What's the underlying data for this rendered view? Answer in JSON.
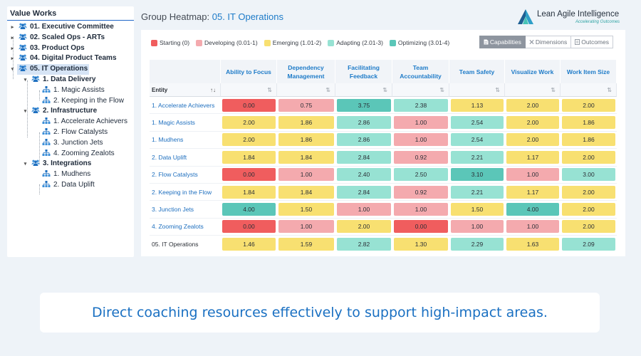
{
  "sidebar": {
    "title": "Value Works",
    "nodes": [
      {
        "label": "01. Executive Committee",
        "level": 0,
        "icon": "team-icon",
        "expanded": false
      },
      {
        "label": "02. Scaled Ops - ARTs",
        "level": 0,
        "icon": "team-icon",
        "expanded": false
      },
      {
        "label": "03. Product Ops",
        "level": 0,
        "icon": "team-icon",
        "expanded": false
      },
      {
        "label": "04. Digital Product Teams",
        "level": 0,
        "icon": "team-icon",
        "expanded": false
      },
      {
        "label": "05. IT Operations",
        "level": 0,
        "icon": "team-icon",
        "expanded": true,
        "selected": true
      },
      {
        "label": "1. Data Delivery",
        "level": 1,
        "icon": "team-icon",
        "expanded": true
      },
      {
        "label": "1. Magic Assists",
        "level": 2,
        "icon": "org-unit-icon"
      },
      {
        "label": "2. Keeping in the Flow",
        "level": 2,
        "icon": "org-unit-icon"
      },
      {
        "label": "2. Infrastructure",
        "level": 1,
        "icon": "team-icon",
        "expanded": true
      },
      {
        "label": "1. Accelerate Achievers",
        "level": 2,
        "icon": "org-unit-icon"
      },
      {
        "label": "2. Flow Catalysts",
        "level": 2,
        "icon": "org-unit-icon"
      },
      {
        "label": "3. Junction Jets",
        "level": 2,
        "icon": "org-unit-icon"
      },
      {
        "label": "4. Zooming Zealots",
        "level": 2,
        "icon": "org-unit-icon"
      },
      {
        "label": "3. Integrations",
        "level": 1,
        "icon": "team-icon",
        "expanded": true
      },
      {
        "label": "1. Mudhens",
        "level": 2,
        "icon": "org-unit-icon"
      },
      {
        "label": "2. Data Uplift",
        "level": 2,
        "icon": "org-unit-icon"
      }
    ]
  },
  "header": {
    "title_prefix": "Group Heatmap:",
    "title_group": "05. IT Operations",
    "logo_text": "Lean Agile Intelligence",
    "logo_tagline": "Accelerating Outcomes"
  },
  "legend": [
    {
      "label": "Starting (0)",
      "color": "#f05d5e"
    },
    {
      "label": "Developing (0.01-1)",
      "color": "#f4aaae"
    },
    {
      "label": "Emerging (1.01-2)",
      "color": "#f8e071"
    },
    {
      "label": "Adapting (2.01-3)",
      "color": "#97e2d3"
    },
    {
      "label": "Optimizing (3.01-4)",
      "color": "#5bc6b8"
    }
  ],
  "tabs": [
    {
      "label": "Capabilities",
      "icon": "document-icon",
      "active": true
    },
    {
      "label": "Dimensions",
      "icon": "dimensions-icon",
      "active": false
    },
    {
      "label": "Outcomes",
      "icon": "outcomes-icon",
      "active": false
    }
  ],
  "table": {
    "entity_header": "Entity",
    "sort_glyph": "⇅",
    "columns": [
      "Ability to Focus",
      "Dependency Management",
      "Facilitating Feedback",
      "Team Accountability",
      "Team Safety",
      "Visualize Work",
      "Work Item Size"
    ],
    "rows": [
      {
        "entity": "1. Accelerate Achievers",
        "values": [
          "0.00",
          "0.75",
          "3.75",
          "2.38",
          "1.13",
          "2.00",
          "2.00"
        ],
        "levels": [
          "start",
          "dev",
          "opt",
          "adp",
          "emg",
          "emg",
          "emg"
        ]
      },
      {
        "entity": "1. Magic Assists",
        "values": [
          "2.00",
          "1.86",
          "2.86",
          "1.00",
          "2.54",
          "2.00",
          "1.86"
        ],
        "levels": [
          "emg",
          "emg",
          "adp",
          "dev",
          "adp",
          "emg",
          "emg"
        ]
      },
      {
        "entity": "1. Mudhens",
        "values": [
          "2.00",
          "1.86",
          "2.86",
          "1.00",
          "2.54",
          "2.00",
          "1.86"
        ],
        "levels": [
          "emg",
          "emg",
          "adp",
          "dev",
          "adp",
          "emg",
          "emg"
        ]
      },
      {
        "entity": "2. Data Uplift",
        "values": [
          "1.84",
          "1.84",
          "2.84",
          "0.92",
          "2.21",
          "1.17",
          "2.00"
        ],
        "levels": [
          "emg",
          "emg",
          "adp",
          "dev",
          "adp",
          "emg",
          "emg"
        ]
      },
      {
        "entity": "2. Flow Catalysts",
        "values": [
          "0.00",
          "1.00",
          "2.40",
          "2.50",
          "3.10",
          "1.00",
          "3.00"
        ],
        "levels": [
          "start",
          "dev",
          "adp",
          "adp",
          "opt",
          "dev",
          "adp"
        ]
      },
      {
        "entity": "2. Keeping in the Flow",
        "values": [
          "1.84",
          "1.84",
          "2.84",
          "0.92",
          "2.21",
          "1.17",
          "2.00"
        ],
        "levels": [
          "emg",
          "emg",
          "adp",
          "dev",
          "adp",
          "emg",
          "emg"
        ]
      },
      {
        "entity": "3. Junction Jets",
        "values": [
          "4.00",
          "1.50",
          "1.00",
          "1.00",
          "1.50",
          "4.00",
          "2.00"
        ],
        "levels": [
          "opt",
          "emg",
          "dev",
          "dev",
          "emg",
          "opt",
          "emg"
        ]
      },
      {
        "entity": "4. Zooming Zealots",
        "values": [
          "0.00",
          "1.00",
          "2.00",
          "0.00",
          "1.00",
          "1.00",
          "2.00"
        ],
        "levels": [
          "start",
          "dev",
          "emg",
          "start",
          "dev",
          "dev",
          "emg"
        ]
      },
      {
        "entity": "05. IT Operations",
        "values": [
          "1.46",
          "1.59",
          "2.82",
          "1.30",
          "2.29",
          "1.63",
          "2.09"
        ],
        "levels": [
          "emg",
          "emg",
          "adp",
          "emg",
          "adp",
          "emg",
          "adp"
        ],
        "total": true
      }
    ]
  },
  "message": "Direct coaching resources effectively to support high-impact areas."
}
